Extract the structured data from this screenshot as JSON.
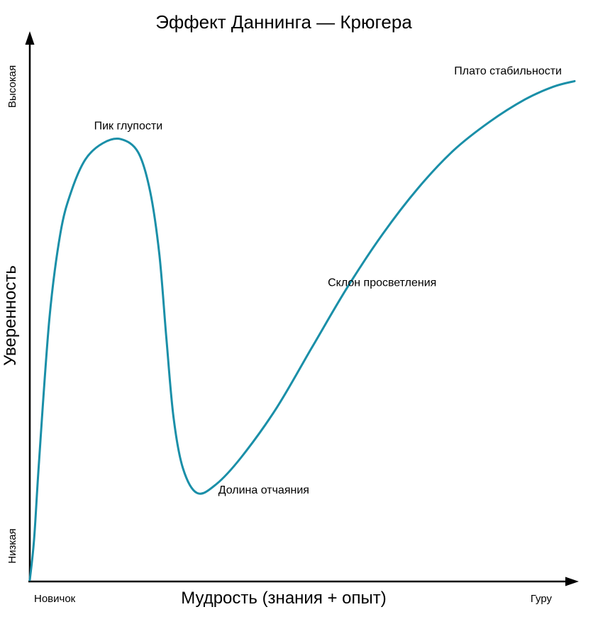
{
  "title": "Эффект Даннинга — Крюгера",
  "axes": {
    "y_label": "Уверенность",
    "y_top_label": "Высокая",
    "y_bottom_label": "Низкая",
    "x_label": "Мудрость (знания + опыт)",
    "x_left_label": "Новичок",
    "x_right_label": "Гуру"
  },
  "chart_data": {
    "type": "line",
    "title": "Эффект Даннинга — Крюгера",
    "xlabel": "Мудрость (знания + опыт)",
    "ylabel": "Уверенность",
    "x_axis_range_labels": [
      "Новичок",
      "Гуру"
    ],
    "y_axis_range_labels": [
      "Низкая",
      "Высокая"
    ],
    "xlim": [
      0,
      1
    ],
    "ylim": [
      0,
      1
    ],
    "grid": false,
    "legend": false,
    "color": "#1a8fa8",
    "series": [
      {
        "name": "Уверенность",
        "x": [
          0,
          0.008,
          0.017,
          0.036,
          0.056,
          0.076,
          0.102,
          0.134,
          0.167,
          0.199,
          0.221,
          0.238,
          0.251,
          0.264,
          0.281,
          0.307,
          0.342,
          0.388,
          0.453,
          0.518,
          0.583,
          0.648,
          0.713,
          0.778,
          0.844,
          0.909,
          0.961,
          1.0
        ],
        "y": [
          0,
          0.081,
          0.234,
          0.513,
          0.68,
          0.763,
          0.826,
          0.858,
          0.866,
          0.84,
          0.763,
          0.638,
          0.471,
          0.318,
          0.22,
          0.171,
          0.188,
          0.241,
          0.338,
          0.457,
          0.575,
          0.68,
          0.77,
          0.844,
          0.9,
          0.944,
          0.969,
          0.98
        ]
      }
    ],
    "annotations": [
      {
        "label": "Пик глупости",
        "x": 0.118,
        "y": 0.885
      },
      {
        "label": "Долина отчаяния",
        "x": 0.346,
        "y": 0.17
      },
      {
        "label": "Склон просветления",
        "x": 0.547,
        "y": 0.577
      },
      {
        "label": "Плато стабильности",
        "x": 0.779,
        "y": 0.993
      }
    ]
  }
}
